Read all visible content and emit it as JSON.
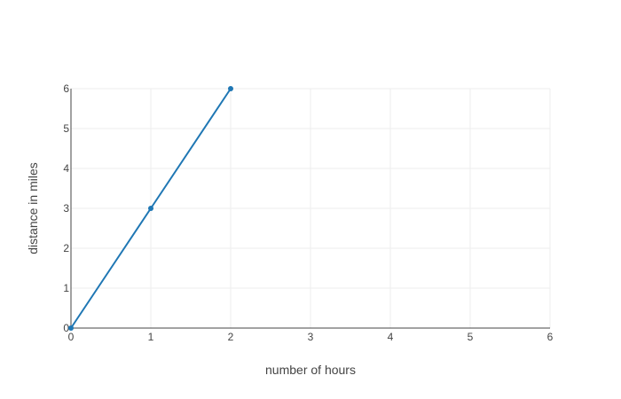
{
  "chart_data": {
    "type": "line",
    "title": "",
    "xlabel": "number of hours",
    "ylabel": "distance in miles",
    "x": [
      0,
      1,
      2
    ],
    "series": [
      {
        "values": [
          0,
          3,
          6
        ],
        "color": "#1f77b4",
        "markers": true
      }
    ],
    "xlim": [
      0,
      6
    ],
    "ylim": [
      0,
      6
    ],
    "xticks": [
      0,
      1,
      2,
      3,
      4,
      5,
      6
    ],
    "yticks": [
      0,
      1,
      2,
      3,
      4,
      5,
      6
    ],
    "grid": true,
    "legend": "none"
  }
}
